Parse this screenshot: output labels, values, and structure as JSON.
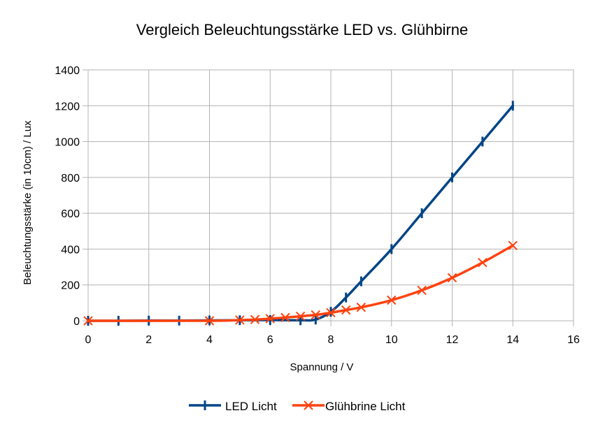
{
  "chart_data": {
    "type": "line",
    "title": "Vergleich Beleuchtungsstärke LED vs. Glühbirne",
    "xlabel": "Spannung / V",
    "ylabel": "Beleuchtungsstärke (in 10cm) / Lux",
    "xlim": [
      0,
      16
    ],
    "ylim": [
      0,
      1400
    ],
    "xticks": [
      0,
      2,
      4,
      6,
      8,
      10,
      12,
      14,
      16
    ],
    "yticks": [
      0,
      200,
      400,
      600,
      800,
      1000,
      1200,
      1400
    ],
    "grid": true,
    "legend": "bottom",
    "series": [
      {
        "name": "LED Licht",
        "color": "#004586",
        "marker": "vertical-bar",
        "points": [
          [
            0,
            0
          ],
          [
            1,
            0
          ],
          [
            2,
            1
          ],
          [
            3,
            1
          ],
          [
            4,
            2
          ],
          [
            5,
            3
          ],
          [
            6,
            4
          ],
          [
            7,
            3
          ],
          [
            7.5,
            7
          ],
          [
            8,
            50
          ],
          [
            8.5,
            130
          ],
          [
            9,
            220
          ],
          [
            10,
            400
          ],
          [
            11,
            600
          ],
          [
            12,
            800
          ],
          [
            13,
            1000
          ],
          [
            14,
            1200
          ]
        ]
      },
      {
        "name": "Glühbrine Licht",
        "color": "#ff420e",
        "marker": "x",
        "points": [
          [
            0,
            0
          ],
          [
            4,
            0
          ],
          [
            5,
            4
          ],
          [
            5.5,
            7
          ],
          [
            6,
            12
          ],
          [
            6.5,
            18
          ],
          [
            7,
            25
          ],
          [
            7.5,
            33
          ],
          [
            8,
            45
          ],
          [
            8.5,
            60
          ],
          [
            9,
            75
          ],
          [
            10,
            115
          ],
          [
            11,
            170
          ],
          [
            12,
            240
          ],
          [
            13,
            325
          ],
          [
            14,
            420
          ]
        ]
      }
    ]
  }
}
